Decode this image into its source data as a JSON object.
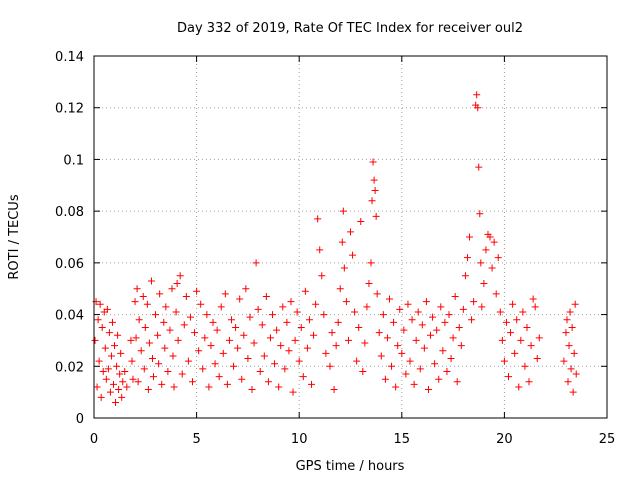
{
  "chart_data": {
    "type": "scatter",
    "title": "Day 332 of 2019, Rate Of TEC Index for receiver oul2",
    "xlabel": "GPS time / hours",
    "ylabel": "ROTI / TECUs",
    "xlim": [
      0,
      25
    ],
    "ylim": [
      0,
      0.14
    ],
    "x_ticks": [
      0,
      5,
      10,
      15,
      20,
      25
    ],
    "x_tick_labels": [
      "0",
      "5",
      "10",
      "15",
      "20",
      "25"
    ],
    "y_ticks": [
      0,
      0.02,
      0.04,
      0.06,
      0.08,
      0.1,
      0.12,
      0.14
    ],
    "y_tick_labels": [
      "0",
      "0.02",
      "0.04",
      "0.06",
      "0.08",
      "0.1",
      "0.12",
      "0.14"
    ],
    "grid": true,
    "marker": "+",
    "series": [
      {
        "name": "ROTI",
        "color": "#ff0000",
        "points": [
          [
            0.05,
            0.03
          ],
          [
            0.1,
            0.045
          ],
          [
            0.15,
            0.012
          ],
          [
            0.2,
            0.038
          ],
          [
            0.25,
            0.022
          ],
          [
            0.3,
            0.044
          ],
          [
            0.35,
            0.008
          ],
          [
            0.4,
            0.035
          ],
          [
            0.45,
            0.018
          ],
          [
            0.5,
            0.041
          ],
          [
            0.55,
            0.027
          ],
          [
            0.6,
            0.015
          ],
          [
            0.65,
            0.042
          ],
          [
            0.7,
            0.019
          ],
          [
            0.75,
            0.033
          ],
          [
            0.8,
            0.01
          ],
          [
            0.85,
            0.024
          ],
          [
            0.9,
            0.037
          ],
          [
            0.95,
            0.013
          ],
          [
            1.0,
            0.028
          ],
          [
            1.05,
            0.006
          ],
          [
            1.1,
            0.02
          ],
          [
            1.15,
            0.032
          ],
          [
            1.2,
            0.011
          ],
          [
            1.25,
            0.017
          ],
          [
            1.3,
            0.025
          ],
          [
            1.35,
            0.008
          ],
          [
            1.4,
            0.014
          ],
          [
            1.5,
            0.018
          ],
          [
            1.6,
            0.012
          ],
          [
            1.8,
            0.03
          ],
          [
            1.85,
            0.022
          ],
          [
            1.9,
            0.015
          ],
          [
            2.0,
            0.045
          ],
          [
            2.05,
            0.031
          ],
          [
            2.1,
            0.05
          ],
          [
            2.15,
            0.014
          ],
          [
            2.2,
            0.038
          ],
          [
            2.3,
            0.026
          ],
          [
            2.4,
            0.047
          ],
          [
            2.45,
            0.019
          ],
          [
            2.5,
            0.035
          ],
          [
            2.6,
            0.044
          ],
          [
            2.65,
            0.011
          ],
          [
            2.7,
            0.029
          ],
          [
            2.8,
            0.053
          ],
          [
            2.85,
            0.023
          ],
          [
            2.9,
            0.016
          ],
          [
            3.0,
            0.04
          ],
          [
            3.1,
            0.032
          ],
          [
            3.15,
            0.021
          ],
          [
            3.2,
            0.048
          ],
          [
            3.3,
            0.013
          ],
          [
            3.4,
            0.037
          ],
          [
            3.45,
            0.027
          ],
          [
            3.5,
            0.043
          ],
          [
            3.6,
            0.018
          ],
          [
            3.7,
            0.034
          ],
          [
            3.8,
            0.05
          ],
          [
            3.85,
            0.024
          ],
          [
            3.9,
            0.012
          ],
          [
            4.0,
            0.041
          ],
          [
            4.05,
            0.052
          ],
          [
            4.1,
            0.03
          ],
          [
            4.2,
            0.055
          ],
          [
            4.3,
            0.017
          ],
          [
            4.4,
            0.036
          ],
          [
            4.5,
            0.047
          ],
          [
            4.6,
            0.022
          ],
          [
            4.7,
            0.039
          ],
          [
            4.8,
            0.014
          ],
          [
            4.9,
            0.033
          ],
          [
            5.0,
            0.049
          ],
          [
            5.1,
            0.026
          ],
          [
            5.2,
            0.044
          ],
          [
            5.3,
            0.019
          ],
          [
            5.4,
            0.031
          ],
          [
            5.5,
            0.04
          ],
          [
            5.6,
            0.012
          ],
          [
            5.7,
            0.028
          ],
          [
            5.8,
            0.037
          ],
          [
            5.9,
            0.021
          ],
          [
            6.0,
            0.034
          ],
          [
            6.1,
            0.016
          ],
          [
            6.2,
            0.043
          ],
          [
            6.3,
            0.025
          ],
          [
            6.4,
            0.048
          ],
          [
            6.5,
            0.013
          ],
          [
            6.6,
            0.03
          ],
          [
            6.7,
            0.038
          ],
          [
            6.8,
            0.02
          ],
          [
            6.9,
            0.035
          ],
          [
            7.0,
            0.027
          ],
          [
            7.1,
            0.046
          ],
          [
            7.2,
            0.015
          ],
          [
            7.3,
            0.032
          ],
          [
            7.4,
            0.05
          ],
          [
            7.5,
            0.023
          ],
          [
            7.6,
            0.039
          ],
          [
            7.7,
            0.011
          ],
          [
            7.8,
            0.029
          ],
          [
            7.9,
            0.06
          ],
          [
            8.0,
            0.042
          ],
          [
            8.1,
            0.018
          ],
          [
            8.2,
            0.036
          ],
          [
            8.3,
            0.024
          ],
          [
            8.4,
            0.047
          ],
          [
            8.5,
            0.014
          ],
          [
            8.6,
            0.031
          ],
          [
            8.7,
            0.04
          ],
          [
            8.8,
            0.021
          ],
          [
            8.9,
            0.034
          ],
          [
            9.0,
            0.012
          ],
          [
            9.1,
            0.028
          ],
          [
            9.2,
            0.043
          ],
          [
            9.3,
            0.019
          ],
          [
            9.4,
            0.037
          ],
          [
            9.5,
            0.026
          ],
          [
            9.6,
            0.045
          ],
          [
            9.7,
            0.01
          ],
          [
            9.8,
            0.03
          ],
          [
            9.9,
            0.041
          ],
          [
            10.0,
            0.022
          ],
          [
            10.1,
            0.035
          ],
          [
            10.2,
            0.016
          ],
          [
            10.3,
            0.049
          ],
          [
            10.4,
            0.027
          ],
          [
            10.5,
            0.038
          ],
          [
            10.6,
            0.013
          ],
          [
            10.7,
            0.032
          ],
          [
            10.8,
            0.044
          ],
          [
            10.9,
            0.077
          ],
          [
            11.0,
            0.065
          ],
          [
            11.1,
            0.055
          ],
          [
            11.2,
            0.04
          ],
          [
            11.3,
            0.025
          ],
          [
            11.5,
            0.02
          ],
          [
            11.6,
            0.033
          ],
          [
            11.7,
            0.011
          ],
          [
            11.8,
            0.028
          ],
          [
            11.9,
            0.037
          ],
          [
            12.0,
            0.05
          ],
          [
            12.1,
            0.068
          ],
          [
            12.15,
            0.08
          ],
          [
            12.2,
            0.058
          ],
          [
            12.3,
            0.045
          ],
          [
            12.4,
            0.03
          ],
          [
            12.5,
            0.072
          ],
          [
            12.6,
            0.063
          ],
          [
            12.7,
            0.041
          ],
          [
            12.8,
            0.022
          ],
          [
            12.9,
            0.035
          ],
          [
            13.0,
            0.076
          ],
          [
            13.1,
            0.018
          ],
          [
            13.2,
            0.029
          ],
          [
            13.3,
            0.043
          ],
          [
            13.4,
            0.052
          ],
          [
            13.5,
            0.06
          ],
          [
            13.55,
            0.084
          ],
          [
            13.6,
            0.099
          ],
          [
            13.65,
            0.092
          ],
          [
            13.7,
            0.088
          ],
          [
            13.75,
            0.078
          ],
          [
            13.8,
            0.048
          ],
          [
            13.9,
            0.033
          ],
          [
            14.0,
            0.024
          ],
          [
            14.1,
            0.04
          ],
          [
            14.2,
            0.015
          ],
          [
            14.3,
            0.031
          ],
          [
            14.4,
            0.046
          ],
          [
            14.5,
            0.02
          ],
          [
            14.6,
            0.037
          ],
          [
            14.7,
            0.012
          ],
          [
            14.8,
            0.028
          ],
          [
            14.9,
            0.042
          ],
          [
            15.0,
            0.025
          ],
          [
            15.1,
            0.034
          ],
          [
            15.2,
            0.017
          ],
          [
            15.3,
            0.044
          ],
          [
            15.4,
            0.022
          ],
          [
            15.5,
            0.038
          ],
          [
            15.6,
            0.013
          ],
          [
            15.7,
            0.03
          ],
          [
            15.8,
            0.041
          ],
          [
            15.9,
            0.019
          ],
          [
            16.0,
            0.036
          ],
          [
            16.1,
            0.027
          ],
          [
            16.2,
            0.045
          ],
          [
            16.3,
            0.011
          ],
          [
            16.4,
            0.032
          ],
          [
            16.5,
            0.039
          ],
          [
            16.6,
            0.021
          ],
          [
            16.7,
            0.034
          ],
          [
            16.8,
            0.015
          ],
          [
            16.9,
            0.043
          ],
          [
            17.0,
            0.026
          ],
          [
            17.1,
            0.037
          ],
          [
            17.2,
            0.018
          ],
          [
            17.3,
            0.04
          ],
          [
            17.4,
            0.023
          ],
          [
            17.5,
            0.031
          ],
          [
            17.6,
            0.047
          ],
          [
            17.7,
            0.014
          ],
          [
            17.8,
            0.035
          ],
          [
            17.9,
            0.028
          ],
          [
            18.0,
            0.042
          ],
          [
            18.1,
            0.055
          ],
          [
            18.2,
            0.062
          ],
          [
            18.3,
            0.07
          ],
          [
            18.4,
            0.038
          ],
          [
            18.5,
            0.045
          ],
          [
            18.6,
            0.121
          ],
          [
            18.65,
            0.125
          ],
          [
            18.7,
            0.12
          ],
          [
            18.75,
            0.097
          ],
          [
            18.8,
            0.079
          ],
          [
            18.85,
            0.06
          ],
          [
            18.9,
            0.043
          ],
          [
            19.0,
            0.052
          ],
          [
            19.1,
            0.065
          ],
          [
            19.2,
            0.071
          ],
          [
            19.3,
            0.07
          ],
          [
            19.4,
            0.058
          ],
          [
            19.5,
            0.068
          ],
          [
            19.6,
            0.048
          ],
          [
            19.7,
            0.062
          ],
          [
            19.8,
            0.041
          ],
          [
            19.9,
            0.03
          ],
          [
            20.0,
            0.022
          ],
          [
            20.1,
            0.037
          ],
          [
            20.2,
            0.016
          ],
          [
            20.3,
            0.033
          ],
          [
            20.4,
            0.044
          ],
          [
            20.5,
            0.025
          ],
          [
            20.6,
            0.038
          ],
          [
            20.7,
            0.012
          ],
          [
            20.8,
            0.03
          ],
          [
            20.9,
            0.041
          ],
          [
            21.0,
            0.02
          ],
          [
            21.1,
            0.035
          ],
          [
            21.2,
            0.014
          ],
          [
            21.3,
            0.028
          ],
          [
            21.4,
            0.046
          ],
          [
            21.5,
            0.043
          ],
          [
            21.6,
            0.023
          ],
          [
            21.7,
            0.031
          ],
          [
            22.9,
            0.022
          ],
          [
            23.0,
            0.033
          ],
          [
            23.05,
            0.038
          ],
          [
            23.1,
            0.014
          ],
          [
            23.15,
            0.028
          ],
          [
            23.2,
            0.041
          ],
          [
            23.25,
            0.019
          ],
          [
            23.3,
            0.035
          ],
          [
            23.35,
            0.01
          ],
          [
            23.4,
            0.025
          ],
          [
            23.45,
            0.044
          ],
          [
            23.5,
            0.017
          ]
        ]
      }
    ]
  }
}
